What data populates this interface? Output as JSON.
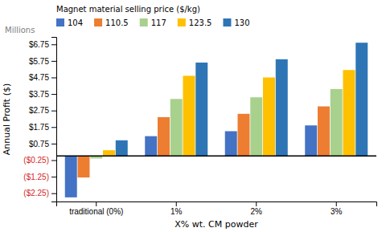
{
  "chart_data": {
    "type": "bar",
    "xlabel": "X% wt. CM powder",
    "ylabel": "Annual Profit ($)",
    "annotations": [
      "Millions"
    ],
    "legend_title": "Magnet material selling price ($/kg)",
    "legend": "top",
    "grid": false,
    "categories": [
      "traditional (0%)",
      "1%",
      "2%",
      "3%"
    ],
    "series": [
      {
        "name": "104",
        "color": "#4472C4",
        "values": [
          -2.5,
          1.2,
          1.5,
          1.85
        ]
      },
      {
        "name": "110.5",
        "color": "#ED7D31",
        "values": [
          -1.3,
          2.35,
          2.55,
          3.0
        ]
      },
      {
        "name": "117",
        "color": "#A9D18E",
        "values": [
          -0.15,
          3.45,
          3.55,
          4.05
        ]
      },
      {
        "name": "123.5",
        "color": "#FFC000",
        "values": [
          0.35,
          4.85,
          4.75,
          5.2
        ]
      },
      {
        "name": "130",
        "color": "#2E75B6",
        "values": [
          0.95,
          5.65,
          5.85,
          6.85
        ]
      }
    ],
    "ylim": [
      -2.75,
      7.2
    ],
    "yticks": [
      {
        "value": -2.25,
        "label": "($2.25)"
      },
      {
        "value": -1.25,
        "label": "($1.25)"
      },
      {
        "value": -0.25,
        "label": "($0.25)"
      },
      {
        "value": 0.75,
        "label": "$0.75"
      },
      {
        "value": 1.75,
        "label": "$1.75"
      },
      {
        "value": 2.75,
        "label": "$2.75"
      },
      {
        "value": 3.75,
        "label": "$3.75"
      },
      {
        "value": 4.75,
        "label": "$4.75"
      },
      {
        "value": 5.75,
        "label": "$5.75"
      },
      {
        "value": 6.75,
        "label": "$6.75"
      }
    ]
  }
}
